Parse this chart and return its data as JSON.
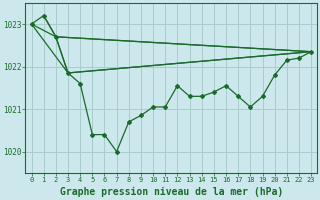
{
  "background_color": "#cce8ec",
  "plot_bg_color": "#cce8ec",
  "grid_color": "#aacccc",
  "line_color": "#1a6b2a",
  "xlabel": "Graphe pression niveau de la mer (hPa)",
  "xlabel_fontsize": 7,
  "ylim": [
    1019.5,
    1023.5
  ],
  "xlim": [
    -0.5,
    23.5
  ],
  "yticks": [
    1020,
    1021,
    1022,
    1023
  ],
  "xticks": [
    0,
    1,
    2,
    3,
    4,
    5,
    6,
    7,
    8,
    9,
    10,
    11,
    12,
    13,
    14,
    15,
    16,
    17,
    18,
    19,
    20,
    21,
    22,
    23
  ],
  "main_x": [
    0,
    1,
    2,
    3,
    4,
    5,
    6,
    7,
    8,
    9,
    10,
    11,
    12,
    13,
    14,
    15,
    16,
    17,
    18,
    19,
    20,
    21,
    22,
    23
  ],
  "main_y": [
    1023.0,
    1023.2,
    1022.7,
    1021.85,
    1021.6,
    1020.4,
    1020.4,
    1020.0,
    1020.7,
    1020.85,
    1021.05,
    1021.05,
    1021.55,
    1021.3,
    1021.3,
    1021.4,
    1021.55,
    1021.3,
    1021.05,
    1021.3,
    1021.8,
    1022.15,
    1022.2,
    1022.35
  ],
  "trend1_x": [
    0,
    2,
    23
  ],
  "trend1_y": [
    1023.0,
    1022.7,
    1022.35
  ],
  "trend2_x": [
    1,
    2,
    23
  ],
  "trend2_y": [
    1023.2,
    1022.7,
    1022.35
  ],
  "trend3_x": [
    0,
    3,
    23
  ],
  "trend3_y": [
    1023.0,
    1021.85,
    1022.35
  ],
  "trend4_x": [
    2,
    3,
    23
  ],
  "trend4_y": [
    1022.7,
    1021.85,
    1022.35
  ]
}
